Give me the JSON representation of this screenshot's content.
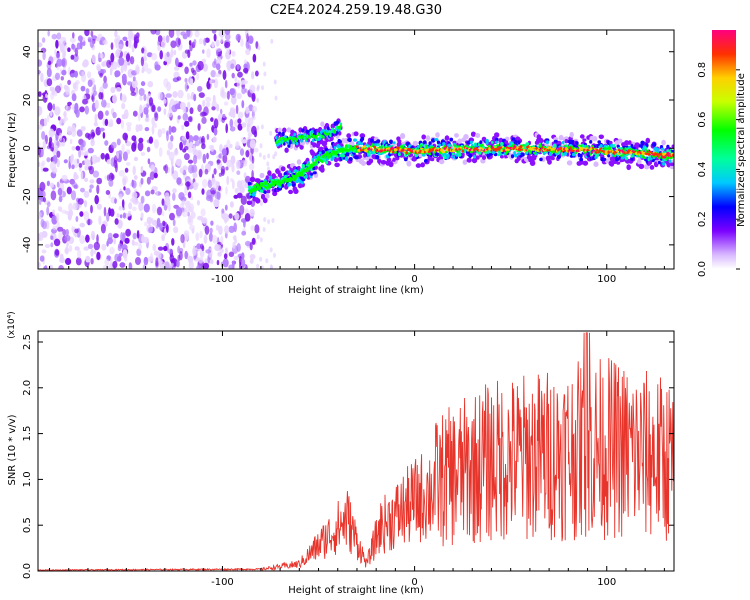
{
  "title": "C2E4.2024.259.19.48.G30",
  "chart_data": [
    {
      "type": "heatmap",
      "xlabel": "Height of straight line (km)",
      "ylabel": "Frequency (Hz)",
      "xlim": [
        -196,
        135
      ],
      "ylim": [
        -50,
        49
      ],
      "xticks": [
        -100,
        0,
        100
      ],
      "yticks": [
        -40,
        -20,
        0,
        20,
        40
      ],
      "colorbar": {
        "label": "Normalized spectral amplitude",
        "range": [
          0,
          0.96
        ],
        "ticks": [
          "0.0",
          "0.2",
          "0.4",
          "0.6",
          "0.8"
        ]
      },
      "noise_region_x": [
        -196,
        -82
      ],
      "ridge": [
        {
          "x": -85,
          "f": -18
        },
        {
          "x": -80,
          "f": -16
        },
        {
          "x": -70,
          "f": -14
        },
        {
          "x": -60,
          "f": -11
        },
        {
          "x": -50,
          "f": -5
        },
        {
          "x": -40,
          "f": -1
        },
        {
          "x": -30,
          "f": 0
        },
        {
          "x": 0,
          "f": -1
        },
        {
          "x": 50,
          "f": 0
        },
        {
          "x": 100,
          "f": -1
        },
        {
          "x": 135,
          "f": -3
        }
      ],
      "upper_branch": [
        {
          "x": -72,
          "f": 3
        },
        {
          "x": -60,
          "f": 4
        },
        {
          "x": -45,
          "f": 6
        },
        {
          "x": -38,
          "f": 9
        }
      ]
    },
    {
      "type": "line",
      "xlabel": "Height of straight line (km)",
      "ylabel": "SNR (10 * v/v)",
      "multiplier": "(x10⁴)",
      "xlim": [
        -196,
        135
      ],
      "ylim": [
        0,
        2.62
      ],
      "xticks": [
        -100,
        0,
        100
      ],
      "yticks": [
        "0.0",
        "0.5",
        "1.0",
        "1.5",
        "2.0",
        "2.5"
      ],
      "series_color": "#e8352c",
      "envelope": [
        {
          "x": -196,
          "y": 0.01
        },
        {
          "x": -80,
          "y": 0.02
        },
        {
          "x": -60,
          "y": 0.08
        },
        {
          "x": -45,
          "y": 0.4
        },
        {
          "x": -35,
          "y": 0.6
        },
        {
          "x": -25,
          "y": 0.08
        },
        {
          "x": -18,
          "y": 0.5
        },
        {
          "x": 0,
          "y": 0.8
        },
        {
          "x": 15,
          "y": 1.0
        },
        {
          "x": 40,
          "y": 1.2
        },
        {
          "x": 80,
          "y": 1.3
        },
        {
          "x": 100,
          "y": 1.35
        },
        {
          "x": 135,
          "y": 1.2
        }
      ]
    }
  ]
}
